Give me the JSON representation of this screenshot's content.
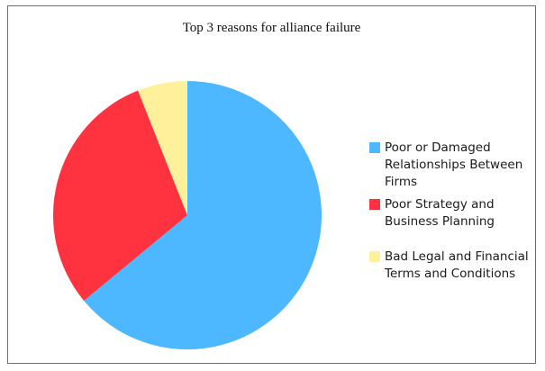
{
  "chart_data": {
    "type": "pie",
    "title": "Top 3 reasons for alliance failure",
    "labels": [
      "Poor or Damaged\nRelationships Between\nFirms",
      "Poor Strategy and\nBusiness Planning",
      "Bad Legal and Financial\nTerms and Conditions"
    ],
    "values": [
      64,
      30,
      6
    ],
    "colors": [
      "#4db8ff",
      "#ff3340",
      "#fff19b"
    ],
    "legend_position": "right"
  }
}
